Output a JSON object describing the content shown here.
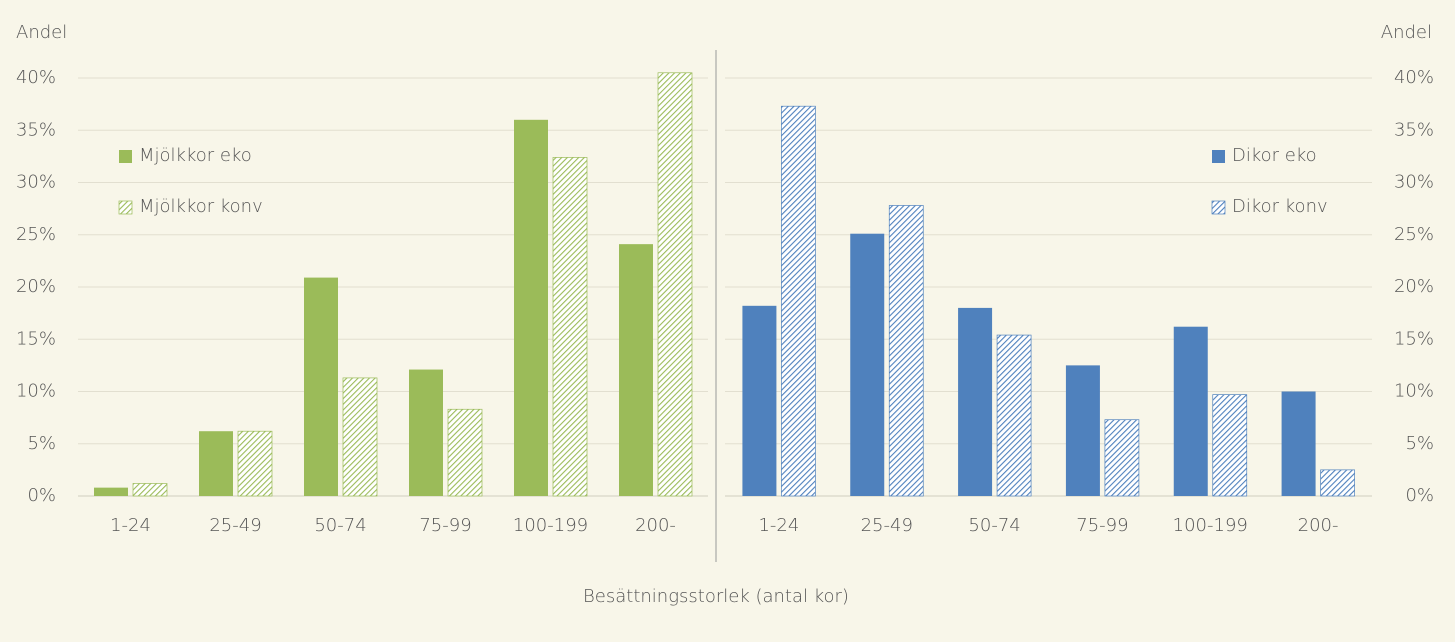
{
  "chart_data": [
    {
      "type": "bar",
      "ylabel": "Andel",
      "categories": [
        "1-24",
        "25-49",
        "50-74",
        "75-99",
        "100-199",
        "200-"
      ],
      "series": [
        {
          "name": "Mjölkkor eko",
          "color": "#9bbb59",
          "pattern": "solid",
          "values": [
            0.8,
            6.2,
            20.9,
            12.1,
            36.0,
            24.1
          ]
        },
        {
          "name": "Mjölkkor konv",
          "color": "#9bbb59",
          "pattern": "hatch",
          "values": [
            1.2,
            6.2,
            11.3,
            8.3,
            32.4,
            40.5
          ]
        }
      ],
      "ylim": [
        0,
        40
      ],
      "yticks": [
        {
          "value": 0,
          "label": "0%"
        },
        {
          "value": 5,
          "label": "5%"
        },
        {
          "value": 10,
          "label": "10%"
        },
        {
          "value": 15,
          "label": "15%"
        },
        {
          "value": 20,
          "label": "20%"
        },
        {
          "value": 25,
          "label": "25%"
        },
        {
          "value": 30,
          "label": "30%"
        },
        {
          "value": 35,
          "label": "35%"
        },
        {
          "value": 40,
          "label": "40%"
        }
      ],
      "grid": true,
      "legend": "upper left",
      "yaxis_side": "left"
    },
    {
      "type": "bar",
      "ylabel": "Andel",
      "categories": [
        "1-24",
        "25-49",
        "50-74",
        "75-99",
        "100-199",
        "200-"
      ],
      "series": [
        {
          "name": "Dikor eko",
          "color": "#4f81bd",
          "pattern": "solid",
          "values": [
            18.2,
            25.1,
            18.0,
            12.5,
            16.2,
            10.0
          ]
        },
        {
          "name": "Dikor konv",
          "color": "#4f81bd",
          "pattern": "hatch",
          "values": [
            37.3,
            27.8,
            15.4,
            7.3,
            9.7,
            2.5
          ]
        }
      ],
      "ylim": [
        0,
        40
      ],
      "yticks": [
        {
          "value": 0,
          "label": "0%"
        },
        {
          "value": 5,
          "label": "5%"
        },
        {
          "value": 10,
          "label": "10%"
        },
        {
          "value": 15,
          "label": "15%"
        },
        {
          "value": 20,
          "label": "20%"
        },
        {
          "value": 25,
          "label": "25%"
        },
        {
          "value": 30,
          "label": "30%"
        },
        {
          "value": 35,
          "label": "35%"
        },
        {
          "value": 40,
          "label": "40%"
        }
      ],
      "grid": true,
      "legend": "upper right",
      "yaxis_side": "right"
    }
  ],
  "xlabel": "Besättningsstorlek (antal kor)"
}
